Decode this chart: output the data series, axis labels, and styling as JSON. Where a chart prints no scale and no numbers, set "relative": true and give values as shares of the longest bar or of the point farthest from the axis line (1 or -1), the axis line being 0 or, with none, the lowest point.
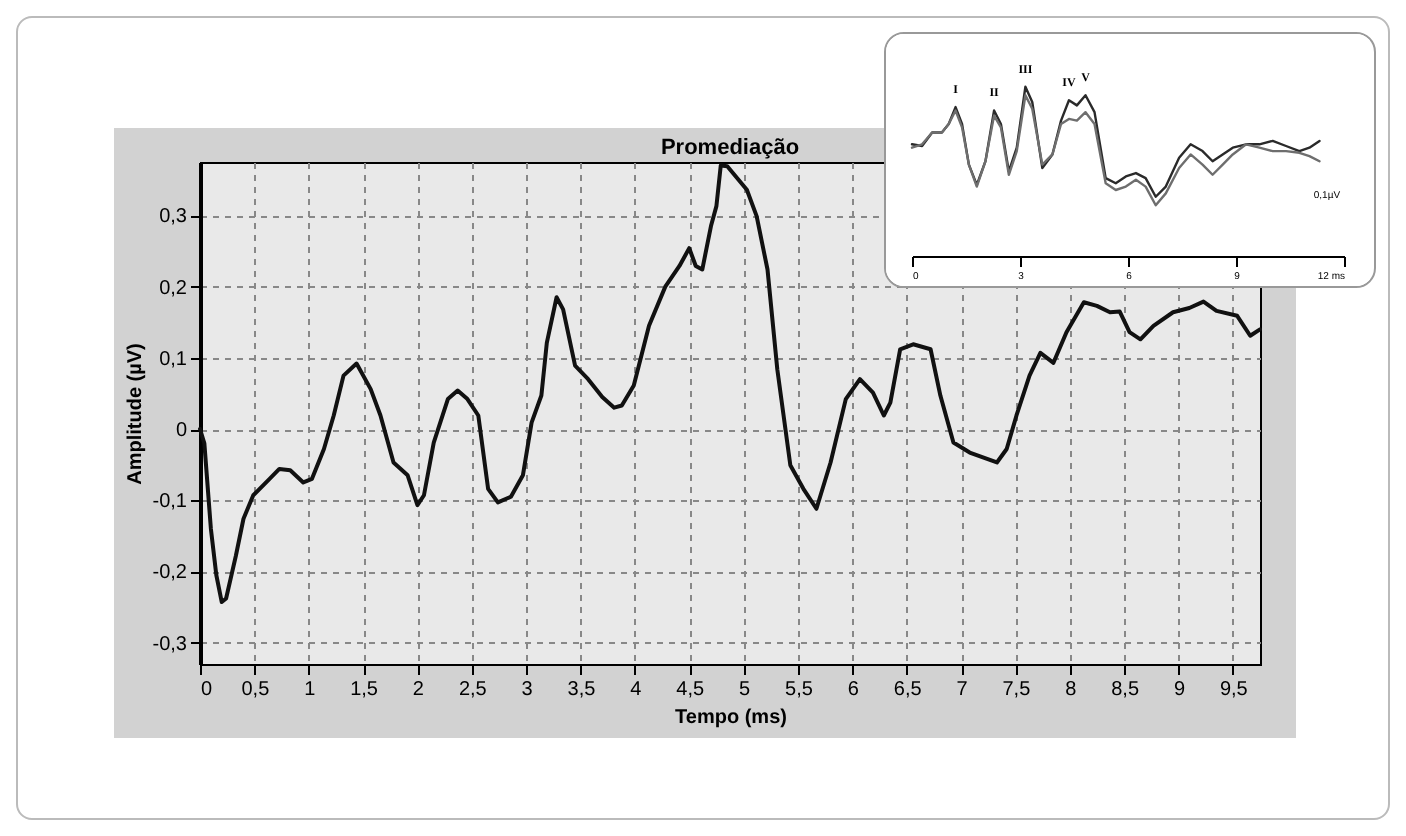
{
  "chart_data": [
    {
      "type": "line",
      "title": "Promediação",
      "xlabel": "Tempo (ms)",
      "ylabel": "Amplitude (µV)",
      "xlim": [
        0,
        9.75
      ],
      "ylim": [
        -0.33,
        0.375
      ],
      "xticks": [
        0,
        {
          "value": 0.5,
          "label": "0,5"
        },
        1,
        {
          "value": 1.5,
          "label": "1,5"
        },
        2,
        {
          "value": 2.5,
          "label": "2,5"
        },
        3,
        {
          "value": 3.5,
          "label": "3,5"
        },
        4,
        {
          "value": 4.5,
          "label": "4,5"
        },
        5,
        {
          "value": 5.5,
          "label": "5,5"
        },
        6,
        {
          "value": 6.5,
          "label": "6,5"
        },
        7,
        {
          "value": 7.5,
          "label": "7,5"
        },
        8,
        {
          "value": 8.5,
          "label": "8,5"
        },
        9,
        {
          "value": 9.5,
          "label": "9,5"
        }
      ],
      "yticks": [
        {
          "value": -0.3,
          "label": "-0,3"
        },
        {
          "value": -0.2,
          "label": "-0,2"
        },
        {
          "value": -0.1,
          "label": "-0,1"
        },
        0,
        {
          "value": 0.1,
          "label": "0,1"
        },
        {
          "value": 0.2,
          "label": "0,2"
        },
        {
          "value": 0.3,
          "label": "0,3"
        }
      ],
      "grid": true,
      "series": [
        {
          "color": "#111111",
          "x": [
            0,
            0.04,
            0.1,
            0.15,
            0.2,
            0.24,
            0.33,
            0.4,
            0.49,
            0.64,
            0.73,
            0.83,
            0.95,
            1.03,
            1.14,
            1.23,
            1.32,
            1.44,
            1.57,
            1.66,
            1.78,
            1.91,
            2.0,
            2.06,
            2.15,
            2.28,
            2.37,
            2.46,
            2.56,
            2.65,
            2.74,
            2.86,
            2.97,
            3.05,
            3.14,
            3.19,
            3.28,
            3.34,
            3.45,
            3.57,
            3.7,
            3.81,
            3.88,
            3.99,
            4.13,
            4.28,
            4.41,
            4.5,
            4.56,
            4.62,
            4.7,
            4.75,
            4.79,
            4.85,
            5.03,
            5.12,
            5.22,
            5.31,
            5.43,
            5.55,
            5.67,
            5.8,
            5.94,
            6.07,
            6.19,
            6.29,
            6.35,
            6.44,
            6.56,
            6.72,
            6.81,
            6.93,
            7.08,
            7.24,
            7.33,
            7.42,
            7.51,
            7.63,
            7.73,
            7.85,
            7.97,
            8.13,
            8.25,
            8.37,
            8.46,
            8.55,
            8.65,
            8.77,
            8.95,
            9.1,
            9.23,
            9.35,
            9.54,
            9.66,
            9.75
          ],
          "values": [
            0,
            -0.02,
            -0.14,
            -0.205,
            -0.243,
            -0.238,
            -0.178,
            -0.126,
            -0.093,
            -0.07,
            -0.056,
            -0.058,
            -0.075,
            -0.07,
            -0.028,
            0.019,
            0.075,
            0.092,
            0.056,
            0.019,
            -0.047,
            -0.065,
            -0.107,
            -0.093,
            -0.019,
            0.042,
            0.054,
            0.042,
            0.019,
            -0.084,
            -0.103,
            -0.095,
            -0.065,
            0.009,
            0.047,
            0.121,
            0.185,
            0.168,
            0.089,
            0.07,
            0.045,
            0.03,
            0.033,
            0.061,
            0.145,
            0.2,
            0.229,
            0.254,
            0.229,
            0.224,
            0.285,
            0.313,
            0.37,
            0.369,
            0.336,
            0.299,
            0.224,
            0.084,
            -0.051,
            -0.084,
            -0.112,
            -0.047,
            0.042,
            0.07,
            0.051,
            0.019,
            0.037,
            0.112,
            0.119,
            0.112,
            0.047,
            -0.019,
            -0.033,
            -0.042,
            -0.047,
            -0.028,
            0.019,
            0.075,
            0.107,
            0.093,
            0.136,
            0.178,
            0.173,
            0.164,
            0.165,
            0.136,
            0.126,
            0.145,
            0.164,
            0.17,
            0.179,
            0.166,
            0.159,
            0.131,
            0.14
          ]
        }
      ]
    },
    {
      "type": "line",
      "relative": true,
      "xlim": [
        0,
        12
      ],
      "xticks": [
        0,
        3,
        6,
        9,
        {
          "value": 12,
          "label": "12 ms"
        }
      ],
      "grid": false,
      "x": [
        0,
        0.28,
        0.56,
        0.83,
        1.02,
        1.21,
        1.39,
        1.58,
        1.8,
        2.04,
        2.28,
        2.47,
        2.69,
        2.91,
        3.15,
        3.34,
        3.62,
        3.9,
        4.14,
        4.36,
        4.58,
        4.82,
        5.07,
        5.38,
        5.66,
        5.94,
        6.22,
        6.49,
        6.77,
        7.05,
        7.42,
        7.74,
        8.07,
        8.35,
        8.63,
        8.91,
        9.28,
        9.65,
        10.02,
        10.39,
        10.76,
        11.04,
        11.32
      ],
      "series": [
        {
          "color": "#2a2a2a",
          "values": [
            0.66,
            0.65,
            0.73,
            0.73,
            0.78,
            0.88,
            0.78,
            0.54,
            0.42,
            0.56,
            0.86,
            0.78,
            0.5,
            0.64,
            1,
            0.91,
            0.52,
            0.6,
            0.8,
            0.92,
            0.89,
            0.95,
            0.85,
            0.46,
            0.43,
            0.47,
            0.49,
            0.46,
            0.35,
            0.41,
            0.58,
            0.66,
            0.62,
            0.56,
            0.6,
            0.64,
            0.66,
            0.66,
            0.68,
            0.65,
            0.62,
            0.64,
            0.68
          ]
        },
        {
          "color": "#6e6e6e",
          "values": [
            0.64,
            0.66,
            0.73,
            0.73,
            0.78,
            0.86,
            0.76,
            0.54,
            0.41,
            0.56,
            0.83,
            0.76,
            0.48,
            0.62,
            0.95,
            0.87,
            0.54,
            0.6,
            0.78,
            0.81,
            0.8,
            0.85,
            0.78,
            0.43,
            0.39,
            0.41,
            0.45,
            0.41,
            0.3,
            0.37,
            0.52,
            0.6,
            0.54,
            0.48,
            0.54,
            0.6,
            0.66,
            0.64,
            0.62,
            0.62,
            0.61,
            0.59,
            0.56
          ]
        }
      ],
      "annotations": [
        {
          "text": "I",
          "x": 1.21,
          "y": 0.88
        },
        {
          "text": "II",
          "x": 2.28,
          "y": 0.86
        },
        {
          "text": "III",
          "x": 3.15,
          "y": 1
        },
        {
          "text": "IV",
          "x": 4.36,
          "y": 0.92
        },
        {
          "text": "V",
          "x": 4.82,
          "y": 0.95
        },
        "0,1µV"
      ]
    }
  ]
}
